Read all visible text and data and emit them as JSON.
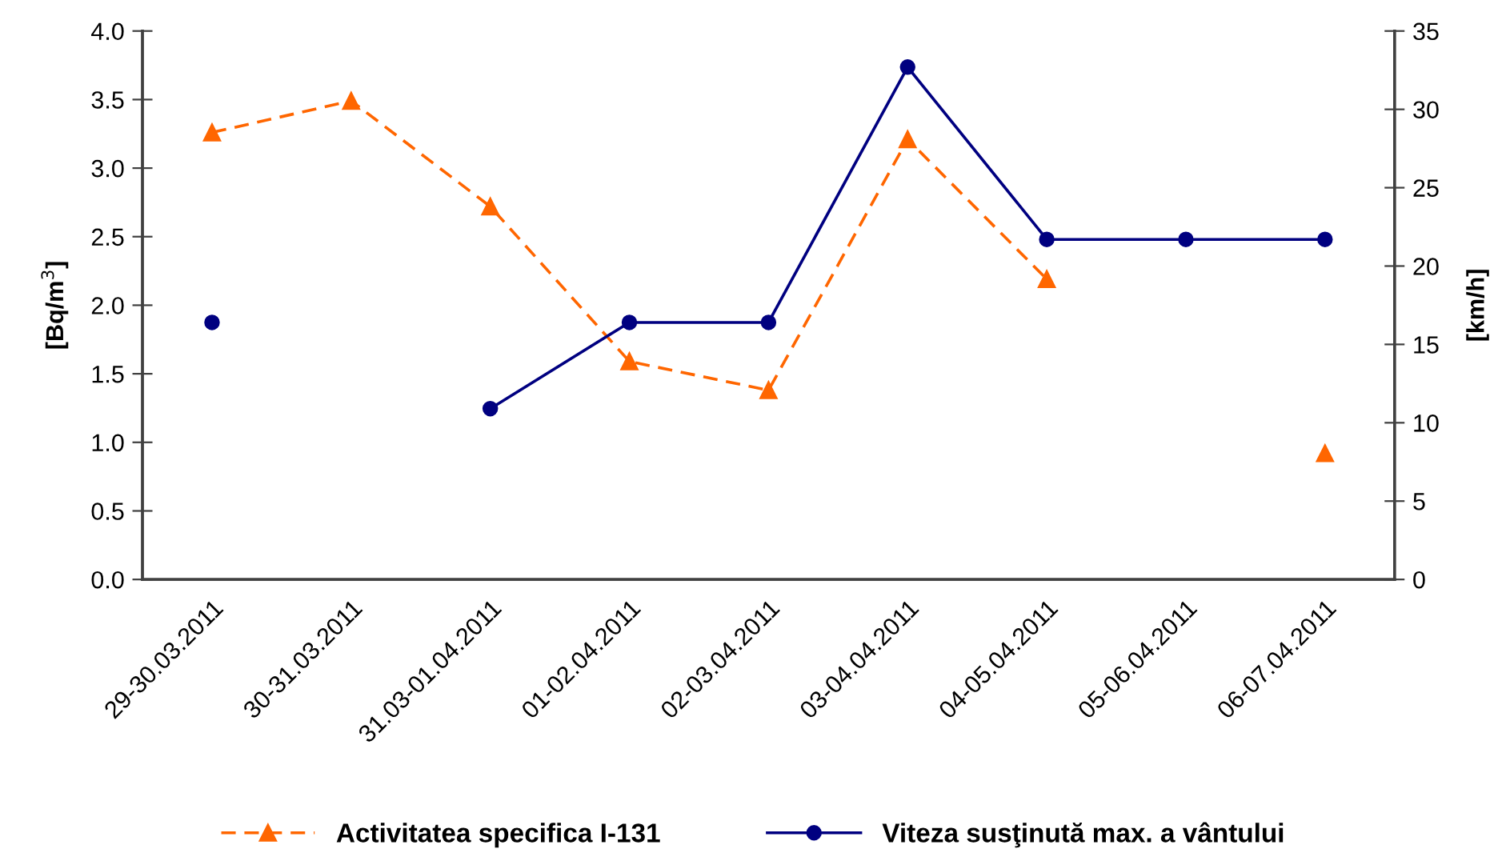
{
  "chart_data": {
    "type": "line",
    "categories": [
      "29-30.03.2011",
      "30-31.03.2011",
      "31.03-01.04.2011",
      "01-02.04.2011",
      "02-03.04.2011",
      "03-04.04.2011",
      "04-05.04.2011",
      "05-06.04.2011",
      "06-07.04.2011"
    ],
    "series": [
      {
        "name": "Activitatea specifica I-131",
        "color": "#ff6600",
        "marker": "triangle",
        "line_style": "dashed",
        "values": [
          3.26,
          3.49,
          2.72,
          1.59,
          1.38,
          3.21,
          2.19,
          null,
          0.92
        ]
      },
      {
        "name": "Viteza susţinută max. a vântului",
        "color": "#000080",
        "marker": "circle",
        "line_style": "solid",
        "axis": "y2",
        "values": [
          16.4,
          null,
          10.9,
          16.4,
          16.4,
          32.7,
          21.7,
          21.7,
          21.7
        ]
      }
    ],
    "ylabel": "[Bq/m$^{3}$]",
    "y2label": "[km/h]",
    "ylim": [
      0,
      4
    ],
    "yticks": [
      {
        "value": 0,
        "label": "0.0"
      },
      0.5,
      {
        "value": 1,
        "label": "1.0"
      },
      1.5,
      {
        "value": 2,
        "label": "2.0"
      },
      2.5,
      {
        "value": 3,
        "label": "3.0"
      },
      3.5,
      {
        "value": 4,
        "label": "4.0"
      }
    ],
    "y2lim": [
      0,
      35
    ],
    "y2ticks": [
      0,
      5,
      10,
      15,
      20,
      25,
      30,
      35
    ],
    "grid": false,
    "legend": "bottom"
  }
}
